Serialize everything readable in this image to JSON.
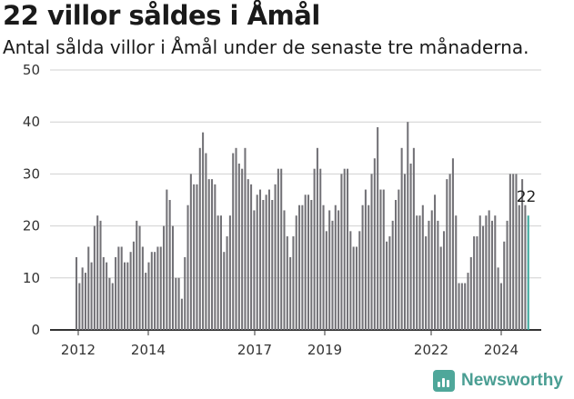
{
  "title": "22 villor såldes i Åmål",
  "subtitle": "Antal sålda villor i Åmål under de senaste tre månaderna.",
  "brand": {
    "name": "Newsworthy",
    "color": "#4fa79a"
  },
  "chart_data": {
    "type": "bar",
    "ylim": [
      0,
      50
    ],
    "yticks": [
      0,
      10,
      20,
      30,
      40,
      50
    ],
    "xticks": [
      "2012",
      "2014",
      "2017",
      "2019",
      "2022",
      "2024"
    ],
    "grid": true,
    "bar_color": "#737277",
    "highlight_color": "#3aa89c",
    "callout": "22",
    "values": [
      14,
      9,
      12,
      11,
      16,
      13,
      20,
      22,
      21,
      14,
      13,
      10,
      9,
      14,
      16,
      16,
      13,
      13,
      15,
      17,
      21,
      20,
      16,
      11,
      13,
      15,
      15,
      16,
      16,
      20,
      27,
      25,
      20,
      10,
      10,
      6,
      14,
      24,
      30,
      28,
      28,
      35,
      38,
      34,
      29,
      29,
      28,
      22,
      22,
      15,
      18,
      22,
      34,
      35,
      32,
      31,
      35,
      29,
      28,
      23,
      26,
      27,
      25,
      26,
      27,
      25,
      28,
      31,
      31,
      23,
      18,
      14,
      18,
      22,
      24,
      24,
      26,
      26,
      25,
      31,
      35,
      31,
      24,
      19,
      23,
      21,
      24,
      23,
      30,
      31,
      31,
      19,
      16,
      16,
      19,
      24,
      27,
      24,
      30,
      33,
      39,
      27,
      27,
      17,
      18,
      21,
      25,
      27,
      35,
      30,
      40,
      32,
      35,
      22,
      22,
      24,
      18,
      21,
      23,
      26,
      21,
      16,
      19,
      29,
      30,
      33,
      22,
      9,
      9,
      9,
      11,
      14,
      18,
      18,
      22,
      20,
      22,
      23,
      21,
      22,
      12,
      9,
      17,
      21,
      30,
      30,
      30,
      24,
      29,
      24,
      22
    ]
  }
}
